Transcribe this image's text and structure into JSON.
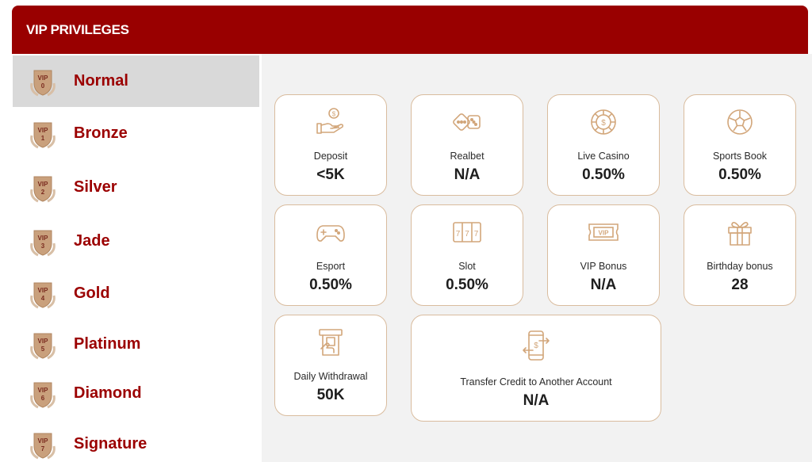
{
  "header": {
    "title": "VIP PRIVILEGES"
  },
  "levels": [
    {
      "name": "Normal",
      "badge_text": "VIP",
      "badge_num": "0",
      "selected": true
    },
    {
      "name": "Bronze",
      "badge_text": "VIP",
      "badge_num": "1"
    },
    {
      "name": "Silver",
      "badge_text": "VIP",
      "badge_num": "2"
    },
    {
      "name": "Jade",
      "badge_text": "VIP",
      "badge_num": "3"
    },
    {
      "name": "Gold",
      "badge_text": "VIP",
      "badge_num": "4"
    },
    {
      "name": "Platinum",
      "badge_text": "VIP",
      "badge_num": "5"
    },
    {
      "name": "Diamond",
      "badge_text": "VIP",
      "badge_num": "6"
    },
    {
      "name": "Signature",
      "badge_text": "VIP",
      "badge_num": "7"
    }
  ],
  "privileges": [
    {
      "icon": "deposit-icon",
      "label": "Deposit",
      "value": "<5K"
    },
    {
      "icon": "dice-icon",
      "label": "Realbet",
      "value": "N/A"
    },
    {
      "icon": "casino-chip-icon",
      "label": "Live Casino",
      "value": "0.50%"
    },
    {
      "icon": "soccer-ball-icon",
      "label": "Sports Book",
      "value": "0.50%"
    },
    {
      "icon": "gamepad-icon",
      "label": "Esport",
      "value": "0.50%"
    },
    {
      "icon": "slot-machine-icon",
      "label": "Slot",
      "value": "0.50%"
    },
    {
      "icon": "vip-ticket-icon",
      "label": "VIP Bonus",
      "value": "N/A",
      "icon_text": "VIP"
    },
    {
      "icon": "gift-icon",
      "label": "Birthday bonus",
      "value": "28"
    },
    {
      "icon": "atm-withdraw-icon",
      "label": "Daily Withdrawal",
      "value": "50K"
    },
    {
      "icon": "phone-transfer-icon",
      "label": "Transfer Credit to Another Account",
      "value": "N/A"
    }
  ],
  "colors": {
    "brand": "#990000",
    "level_text": "#9b0000",
    "card_border": "#d9bc9e",
    "icon": "#d2a67a",
    "badge": "#c9a07c"
  }
}
